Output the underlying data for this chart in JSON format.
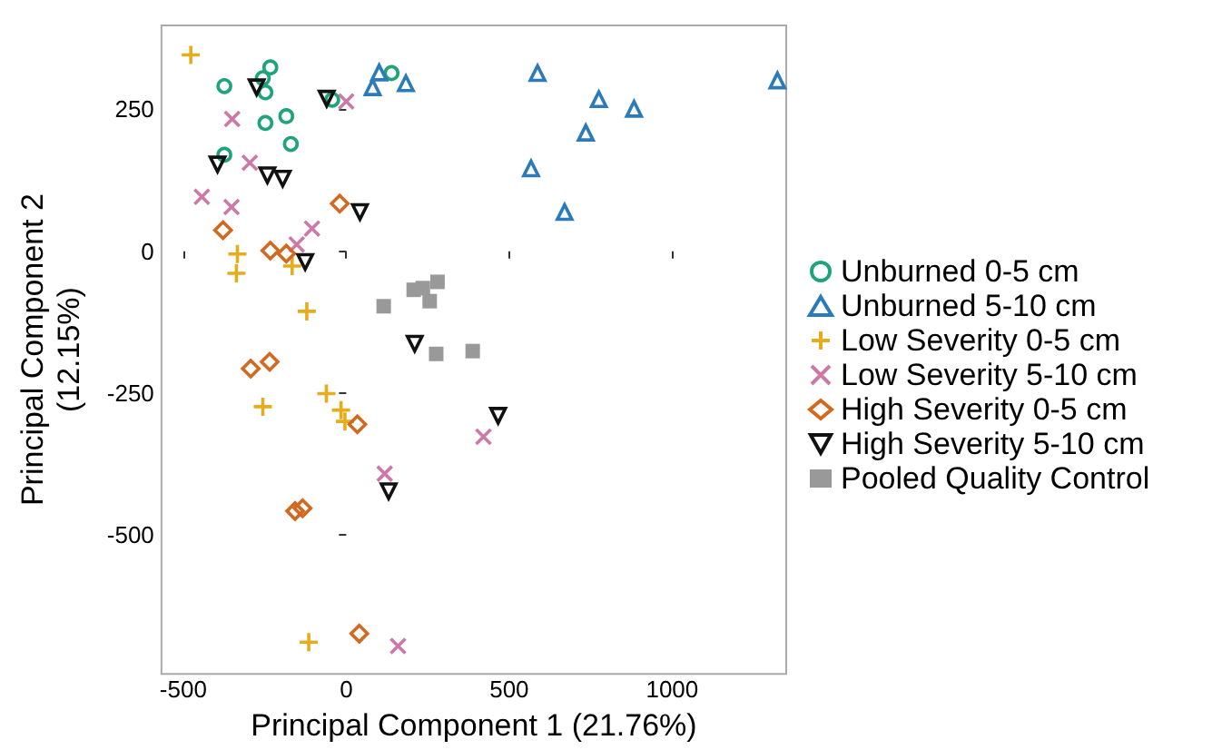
{
  "chart_data": {
    "type": "scatter",
    "xlabel": "Principal Component 1 (21.76%)",
    "ylabel": "Principal Component 2\n(12.15%)",
    "xlim": [
      -567,
      1350
    ],
    "ylim": [
      -745,
      398
    ],
    "xticks": [
      -500,
      0,
      500,
      1000
    ],
    "yticks": [
      -500,
      -250,
      0,
      250
    ],
    "grid": false,
    "legend": "right",
    "series": [
      {
        "name": "Unburned 0-5 cm",
        "color": "#1fa37a",
        "marker": "circle",
        "x": [
          -374,
          -233,
          -256,
          -248,
          -184,
          -248,
          -170,
          -374,
          -43,
          139
        ],
        "values": [
          291,
          324,
          305,
          280,
          238,
          226,
          189,
          170,
          267,
          314
        ]
      },
      {
        "name": "Unburned 5-10 cm",
        "color": "#2b7bba",
        "marker": "triangle",
        "x": [
          101,
          81,
          183,
          587,
          775,
          883,
          735,
          567,
          670,
          1323
        ],
        "values": [
          315,
          289,
          296,
          314,
          268,
          251,
          209,
          146,
          69,
          301
        ]
      },
      {
        "name": "Low Severity 0-5 cm",
        "color": "#e6ac1c",
        "marker": "plus",
        "x": [
          -477,
          -334,
          -337,
          -166,
          -121,
          -256,
          -61,
          -16,
          -4,
          -115
        ],
        "values": [
          346,
          -5,
          -39,
          -26,
          -106,
          -274,
          -251,
          -280,
          -300,
          -689
        ]
      },
      {
        "name": "Low Severity 5-10 cm",
        "color": "#cc79a7",
        "marker": "x",
        "x": [
          -350,
          -296,
          -443,
          -352,
          -105,
          -152,
          0,
          118,
          159,
          421
        ],
        "values": [
          233,
          156,
          96,
          78,
          40,
          12,
          264,
          -392,
          -696,
          -327
        ]
      },
      {
        "name": "High Severity 0-5 cm",
        "color": "#d2691e",
        "marker": "diamond",
        "x": [
          -378,
          -233,
          -184,
          -20,
          -293,
          -235,
          34,
          -157,
          -134,
          40
        ],
        "values": [
          37,
          1,
          -4,
          84,
          -207,
          -195,
          -305,
          -458,
          -453,
          -674
        ]
      },
      {
        "name": "High Severity 5-10 cm",
        "color": "#111111",
        "marker": "triangle-down",
        "x": [
          -275,
          -395,
          -242,
          -195,
          -60,
          42,
          -126,
          210,
          130,
          466
        ],
        "values": [
          289,
          153,
          134,
          128,
          269,
          69,
          -19,
          -163,
          -423,
          -290
        ]
      },
      {
        "name": "Pooled Quality Control",
        "color": "#999999",
        "marker": "square",
        "x": [
          115,
          207,
          235,
          280,
          256,
          276,
          388
        ],
        "values": [
          -97,
          -68,
          -65,
          -54,
          -88,
          -181,
          -176
        ]
      }
    ]
  }
}
